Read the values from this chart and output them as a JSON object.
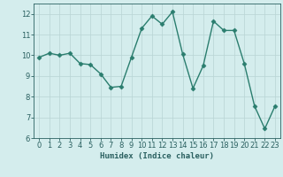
{
  "x": [
    0,
    1,
    2,
    3,
    4,
    5,
    6,
    7,
    8,
    9,
    10,
    11,
    12,
    13,
    14,
    15,
    16,
    17,
    18,
    19,
    20,
    21,
    22,
    23
  ],
  "y": [
    9.9,
    10.1,
    10.0,
    10.1,
    9.6,
    9.55,
    9.1,
    8.45,
    8.5,
    9.9,
    11.3,
    11.9,
    11.5,
    12.1,
    10.05,
    8.4,
    9.5,
    11.65,
    11.2,
    11.2,
    9.6,
    7.55,
    6.45,
    7.55
  ],
  "line_color": "#2a7d6e",
  "marker": "D",
  "markersize": 2.5,
  "linewidth": 1.0,
  "bg_color": "#d4eded",
  "grid_color": "#b8d4d4",
  "xlabel": "Humidex (Indice chaleur)",
  "ylim": [
    6,
    12.5
  ],
  "xlim": [
    -0.5,
    23.5
  ],
  "yticks": [
    6,
    7,
    8,
    9,
    10,
    11,
    12
  ],
  "xticks": [
    0,
    1,
    2,
    3,
    4,
    5,
    6,
    7,
    8,
    9,
    10,
    11,
    12,
    13,
    14,
    15,
    16,
    17,
    18,
    19,
    20,
    21,
    22,
    23
  ],
  "xlabel_fontsize": 6.5,
  "tick_fontsize": 6
}
